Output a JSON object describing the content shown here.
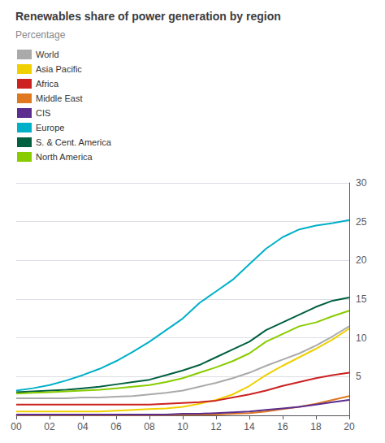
{
  "chart_data": {
    "type": "line",
    "title": "Renewables share of power generation by region",
    "subtitle": "Percentage",
    "x": [
      2000,
      2001,
      2002,
      2003,
      2004,
      2005,
      2006,
      2007,
      2008,
      2009,
      2010,
      2011,
      2012,
      2013,
      2014,
      2015,
      2016,
      2017,
      2018,
      2019,
      2020
    ],
    "series": [
      {
        "name": "World",
        "color": "#aaaaaa",
        "values": [
          2.2,
          2.2,
          2.2,
          2.2,
          2.3,
          2.3,
          2.4,
          2.5,
          2.7,
          2.9,
          3.2,
          3.7,
          4.2,
          4.8,
          5.5,
          6.4,
          7.2,
          8.0,
          9.0,
          10.2,
          11.5
        ]
      },
      {
        "name": "Asia Pacific",
        "color": "#f0d000",
        "values": [
          0.5,
          0.5,
          0.5,
          0.5,
          0.5,
          0.5,
          0.6,
          0.7,
          0.8,
          0.9,
          1.1,
          1.5,
          2.0,
          2.7,
          3.8,
          5.2,
          6.4,
          7.5,
          8.6,
          9.8,
          11.2
        ]
      },
      {
        "name": "Africa",
        "color": "#cc2222",
        "values": [
          1.4,
          1.4,
          1.4,
          1.4,
          1.4,
          1.4,
          1.4,
          1.4,
          1.4,
          1.5,
          1.6,
          1.7,
          1.9,
          2.3,
          2.7,
          3.2,
          3.8,
          4.3,
          4.8,
          5.2,
          5.5
        ]
      },
      {
        "name": "Middle East",
        "color": "#e07820",
        "values": [
          0.05,
          0.05,
          0.05,
          0.05,
          0.05,
          0.05,
          0.05,
          0.05,
          0.05,
          0.05,
          0.1,
          0.1,
          0.1,
          0.2,
          0.3,
          0.5,
          0.8,
          1.1,
          1.5,
          2.0,
          2.5
        ]
      },
      {
        "name": "CIS",
        "color": "#5b2d8e",
        "values": [
          0.1,
          0.1,
          0.1,
          0.1,
          0.1,
          0.1,
          0.1,
          0.1,
          0.1,
          0.1,
          0.2,
          0.2,
          0.3,
          0.4,
          0.5,
          0.7,
          0.9,
          1.1,
          1.4,
          1.7,
          2.0
        ]
      },
      {
        "name": "Europe",
        "color": "#00b0c8",
        "values": [
          3.2,
          3.5,
          3.9,
          4.5,
          5.2,
          6.0,
          7.0,
          8.2,
          9.5,
          11.0,
          12.5,
          14.5,
          16.0,
          17.5,
          19.5,
          21.5,
          23.0,
          24.0,
          24.5,
          24.8,
          25.2
        ]
      },
      {
        "name": "S. & Cent. America",
        "color": "#006040",
        "values": [
          3.0,
          3.1,
          3.2,
          3.3,
          3.5,
          3.7,
          4.0,
          4.3,
          4.6,
          5.2,
          5.8,
          6.5,
          7.5,
          8.5,
          9.5,
          11.0,
          12.0,
          13.0,
          14.0,
          14.8,
          15.2
        ]
      },
      {
        "name": "North America",
        "color": "#88cc00",
        "values": [
          2.8,
          2.9,
          3.0,
          3.1,
          3.2,
          3.3,
          3.5,
          3.7,
          3.9,
          4.3,
          4.8,
          5.5,
          6.2,
          7.0,
          8.0,
          9.5,
          10.5,
          11.5,
          12.0,
          12.8,
          13.5
        ]
      }
    ],
    "xlim": [
      2000,
      2020
    ],
    "xticks": [
      {
        "value": 2000,
        "label": "00"
      },
      {
        "value": 2002,
        "label": "02"
      },
      {
        "value": 2004,
        "label": "04"
      },
      {
        "value": 2006,
        "label": "06"
      },
      {
        "value": 2008,
        "label": "08"
      },
      {
        "value": 2010,
        "label": "10"
      },
      {
        "value": 2012,
        "label": "12"
      },
      {
        "value": 2014,
        "label": "14"
      },
      {
        "value": 2016,
        "label": "16"
      },
      {
        "value": 2018,
        "label": "18"
      },
      {
        "value": 2020,
        "label": "20"
      }
    ],
    "ylim": [
      0,
      30
    ],
    "yticks": [
      5,
      10,
      15,
      20,
      25,
      30
    ],
    "grid": true,
    "legend": "upper left"
  }
}
